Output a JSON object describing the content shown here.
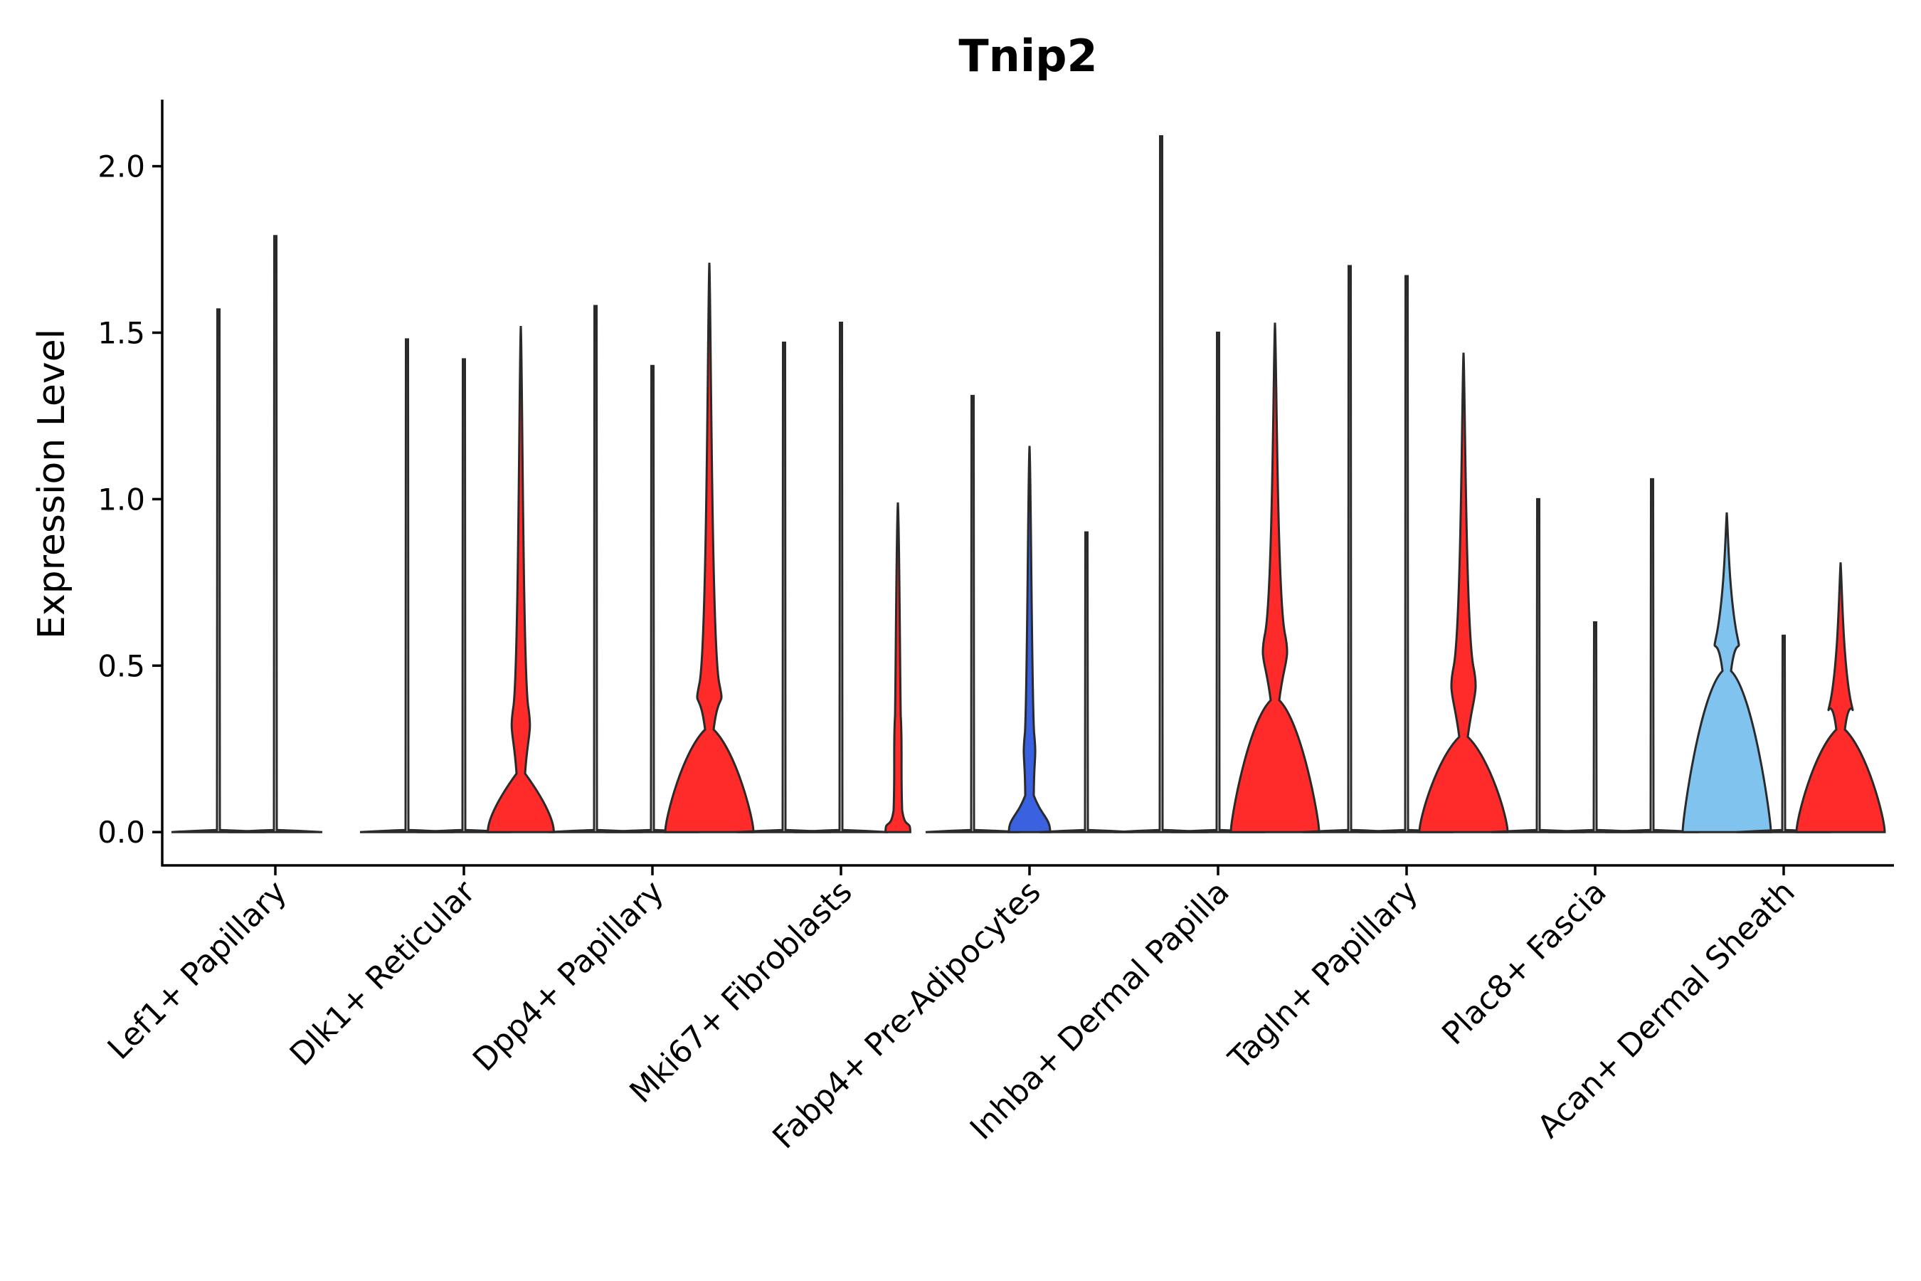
{
  "chart_data": {
    "type": "violin",
    "title": "Tnip2",
    "xlabel": "",
    "ylabel": "Expression Level",
    "ylim": [
      -0.1,
      2.2
    ],
    "yticks": [
      "0.0",
      "0.5",
      "1.0",
      "1.5",
      "2.0"
    ],
    "grid": false,
    "legend": "none",
    "categories": [
      "Lef1+ Papillary",
      "Dlk1+ Reticular",
      "Dpp4+ Papillary",
      "Mki67+ Fibroblasts",
      "Fabp4+ Pre-Adipocytes",
      "Inhba+ Dermal Papilla",
      "Tagln+ Papillary",
      "Plac8+ Fascia",
      "Acan+ Dermal Sheath"
    ],
    "colors": {
      "red": "#ff2a2a",
      "blue": "#3a62e0",
      "light_blue": "#7fc3ee",
      "none": "#ffffff"
    },
    "groups": [
      {
        "category": "Lef1+ Papillary",
        "violins": [
          {
            "max": 1.57,
            "color": "none",
            "bulge": 0.0
          },
          {
            "max": 1.79,
            "color": "none",
            "bulge": 0.0
          },
          null
        ]
      },
      {
        "category": "Dlk1+ Reticular",
        "violins": [
          {
            "max": 1.48,
            "color": "none",
            "bulge": 0.0
          },
          {
            "max": 1.42,
            "color": "none",
            "bulge": 0.0
          },
          {
            "max": 1.52,
            "color": "red",
            "bulge": 0.08,
            "mid": 0.38
          }
        ]
      },
      {
        "category": "Dpp4+ Papillary",
        "violins": [
          {
            "max": 1.58,
            "color": "none",
            "bulge": 0.0
          },
          {
            "max": 1.4,
            "color": "none",
            "bulge": 0.0
          },
          {
            "max": 1.71,
            "color": "red",
            "bulge": 0.14,
            "mid": 0.45
          }
        ]
      },
      {
        "category": "Mki67+ Fibroblasts",
        "violins": [
          {
            "max": 1.47,
            "color": "none",
            "bulge": 0.0
          },
          {
            "max": 1.53,
            "color": "none",
            "bulge": 0.0
          },
          {
            "max": 0.99,
            "color": "red",
            "bulge": 0.03,
            "mid": 0.35
          }
        ]
      },
      {
        "category": "Fabp4+ Pre-Adipocytes",
        "violins": [
          {
            "max": 1.31,
            "color": "none",
            "bulge": 0.0
          },
          {
            "max": 1.16,
            "color": "blue",
            "bulge": 0.05,
            "mid": 0.3
          },
          {
            "max": 0.9,
            "color": "none",
            "bulge": 0.0
          }
        ]
      },
      {
        "category": "Inhba+ Dermal Papilla",
        "violins": [
          {
            "max": 2.09,
            "color": "none",
            "bulge": 0.0
          },
          {
            "max": 1.5,
            "color": "none",
            "bulge": 0.0
          },
          {
            "max": 1.53,
            "color": "red",
            "bulge": 0.18,
            "mid": 0.6
          }
        ]
      },
      {
        "category": "Tagln+ Papillary",
        "violins": [
          {
            "max": 1.7,
            "color": "none",
            "bulge": 0.0
          },
          {
            "max": 1.67,
            "color": "none",
            "bulge": 0.0
          },
          {
            "max": 1.44,
            "color": "red",
            "bulge": 0.13,
            "mid": 0.5
          }
        ]
      },
      {
        "category": "Plac8+ Fascia",
        "violins": [
          {
            "max": 1.0,
            "color": "none",
            "bulge": 0.0
          },
          {
            "max": 0.63,
            "color": "none",
            "bulge": 0.0
          },
          {
            "max": 1.06,
            "color": "none",
            "bulge": 0.0
          }
        ]
      },
      {
        "category": "Acan+ Dermal Sheath",
        "violins": [
          {
            "max": 0.96,
            "color": "light_blue",
            "bulge": 0.22,
            "mid": 0.6
          },
          {
            "max": 0.59,
            "color": "none",
            "bulge": 0.0
          },
          {
            "max": 0.81,
            "color": "red",
            "bulge": 0.14,
            "mid": 0.4
          }
        ]
      }
    ]
  }
}
